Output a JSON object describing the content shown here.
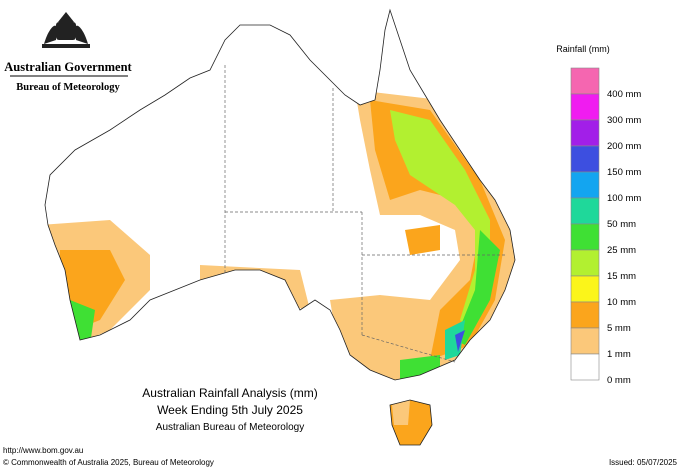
{
  "header": {
    "government": "Australian Government",
    "agency": "Bureau of Meteorology"
  },
  "legend": {
    "title": "Rainfall (mm)",
    "items": [
      {
        "color": "#f566b0",
        "label": "400 mm"
      },
      {
        "color": "#f01cf0",
        "label": "300 mm"
      },
      {
        "color": "#a21fe8",
        "label": "200 mm"
      },
      {
        "color": "#3d4fe0",
        "label": "150 mm"
      },
      {
        "color": "#13a5f0",
        "label": "100 mm"
      },
      {
        "color": "#1fd89a",
        "label": "50 mm"
      },
      {
        "color": "#3fe034",
        "label": "25 mm"
      },
      {
        "color": "#b2f030",
        "label": "15 mm"
      },
      {
        "color": "#fbf51a",
        "label": "10 mm"
      },
      {
        "color": "#fba51c",
        "label": "5 mm"
      },
      {
        "color": "#fbc87a",
        "label": "1 mm"
      },
      {
        "color": "#ffffff",
        "label": "0 mm"
      }
    ]
  },
  "map_title": {
    "line1": "Australian Rainfall Analysis (mm)",
    "line2": "Week Ending 5th July 2025",
    "line3": "Australian Bureau of Meteorology"
  },
  "footer": {
    "url": "http://www.bom.gov.au",
    "copyright": "© Commonwealth of Australia 2025, Bureau of Meteorology",
    "issued": "Issued: 05/07/2025"
  }
}
